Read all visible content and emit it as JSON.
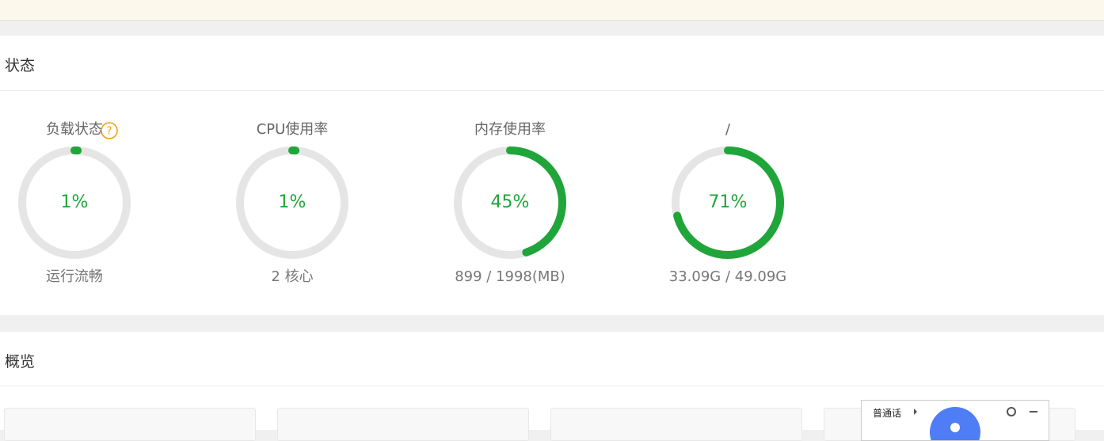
{
  "status": {
    "title": "状态",
    "gauges": [
      {
        "title": "负载状态",
        "help": "?",
        "value": 1,
        "label": "1%",
        "detail": "运行流畅"
      },
      {
        "title": "CPU使用率",
        "value": 1,
        "label": "1%",
        "detail": "2 核心"
      },
      {
        "title": "内存使用率",
        "value": 45,
        "label": "45%",
        "detail": "899 / 1998(MB)"
      },
      {
        "title": "/",
        "value": 71,
        "label": "71%",
        "detail": "33.09G / 49.09G"
      }
    ]
  },
  "overview": {
    "title": "概览"
  },
  "voice_widget": {
    "language": "普通话"
  }
}
